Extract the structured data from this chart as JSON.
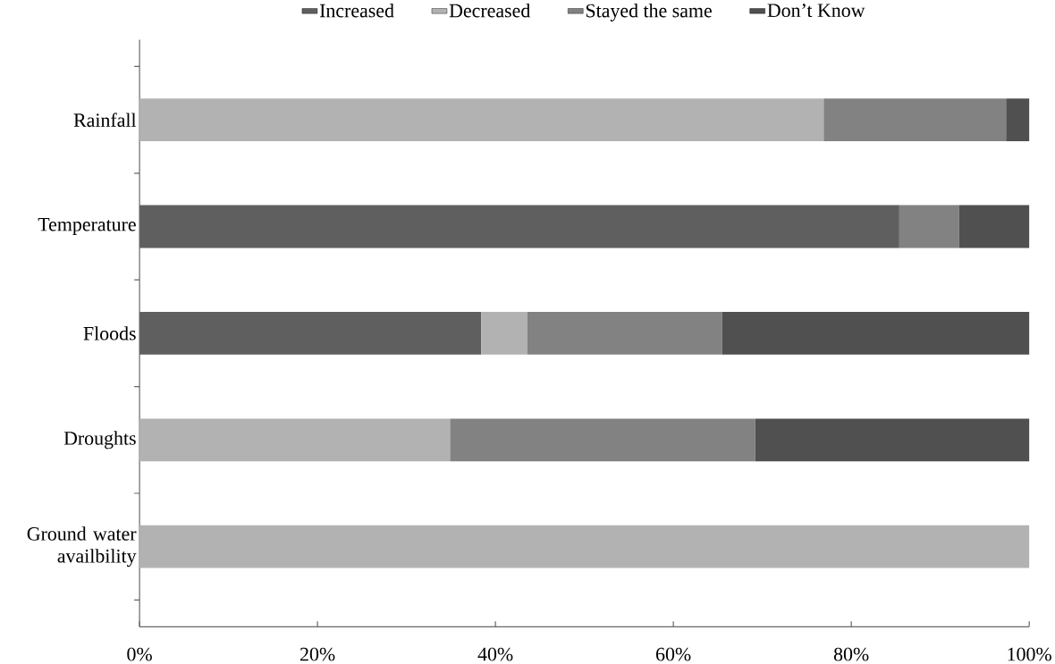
{
  "chart_data": {
    "type": "bar",
    "orientation": "horizontal",
    "stacked": true,
    "categories": [
      "Rainfall",
      "Temperature",
      "Floods",
      "Droughts",
      "Ground water availbility"
    ],
    "series": [
      {
        "name": "Increased",
        "color": "#5f5f5f",
        "values": [
          null,
          85.4,
          38.4,
          null,
          null
        ]
      },
      {
        "name": "Decreased",
        "color": "#b2b2b2",
        "values": [
          76.9,
          null,
          5.2,
          34.9,
          100
        ]
      },
      {
        "name": "Stayed the same",
        "color": "#828282",
        "values": [
          20.5,
          6.7,
          21.9,
          34.3,
          null
        ]
      },
      {
        "name": "Don’t Know",
        "color": "#505050",
        "values": [
          2.6,
          7.9,
          34.5,
          30.8,
          null
        ]
      }
    ],
    "xlim": [
      0,
      100
    ],
    "xticks": [
      {
        "value": 0,
        "label": "0%"
      },
      {
        "value": 20,
        "label": "20%"
      },
      {
        "value": 40,
        "label": "40%"
      },
      {
        "value": 60,
        "label": "60%"
      },
      {
        "value": 80,
        "label": "80%"
      },
      {
        "value": 100,
        "label": "100%"
      }
    ],
    "legend": "top",
    "grid": false
  }
}
